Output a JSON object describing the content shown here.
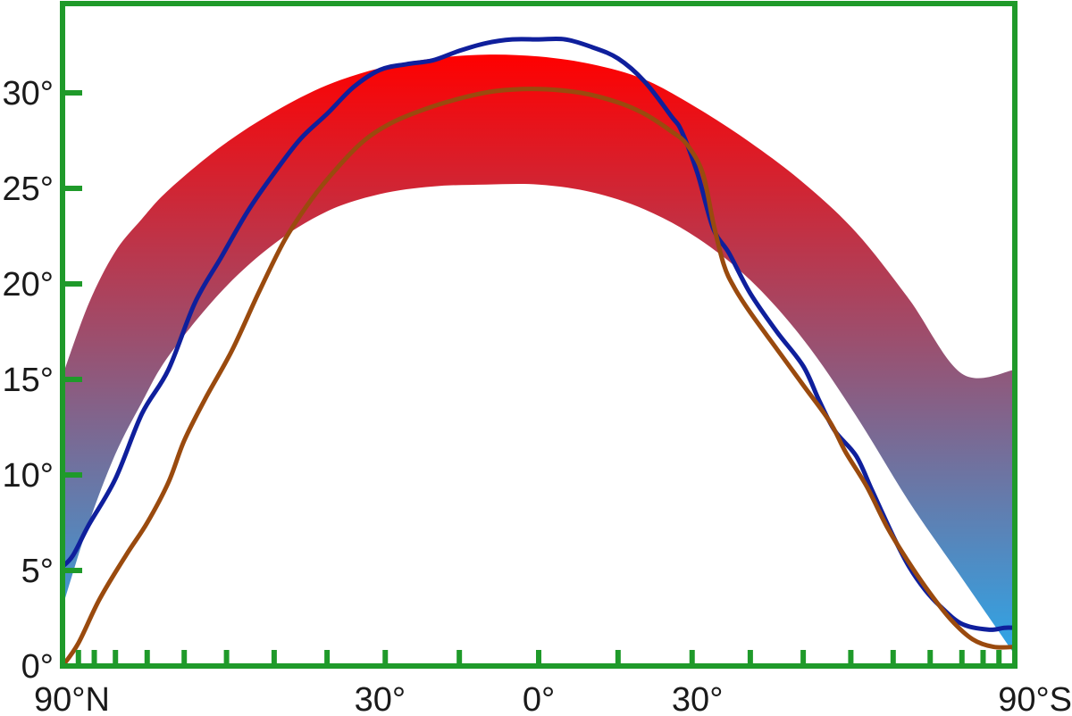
{
  "chart_data": {
    "type": "line",
    "title": "",
    "xlabel": "",
    "ylabel": "",
    "x_domain": [
      -90,
      90
    ],
    "ylim": [
      0,
      33
    ],
    "y_ticks": [
      {
        "value": 0,
        "label": "0°"
      },
      {
        "value": 5,
        "label": "5°"
      },
      {
        "value": 10,
        "label": "10°"
      },
      {
        "value": 15,
        "label": "15°"
      },
      {
        "value": 20,
        "label": "20°"
      },
      {
        "value": 25,
        "label": "25°"
      },
      {
        "value": 30,
        "label": "30°"
      }
    ],
    "x_tick_labels": [
      {
        "value": -90,
        "label": "90°N",
        "anchor": "start"
      },
      {
        "value": -30,
        "label": "30°",
        "anchor": "middle"
      },
      {
        "value": 0,
        "label": "0°",
        "anchor": "middle"
      },
      {
        "value": 30,
        "label": "30°",
        "anchor": "middle"
      },
      {
        "value": 90,
        "label": "90°S",
        "anchor": "end"
      }
    ],
    "x_minor_ticks": [
      -87,
      -84,
      -80,
      -74,
      -67,
      -59,
      -50,
      -40,
      -29,
      -15,
      0,
      15,
      29,
      40,
      50,
      59,
      67,
      74,
      80,
      84,
      87
    ],
    "band": {
      "top_color": "#ff0000",
      "bottom_color": "#2ea6e8",
      "upper": [
        [
          -90,
          15.2
        ],
        [
          -85,
          19.0
        ],
        [
          -80,
          21.7
        ],
        [
          -75,
          23.4
        ],
        [
          -70,
          24.9
        ],
        [
          -60,
          27.2
        ],
        [
          -50,
          29.0
        ],
        [
          -40,
          30.4
        ],
        [
          -30,
          31.3
        ],
        [
          -20,
          31.8
        ],
        [
          -10,
          32.0
        ],
        [
          0,
          31.9
        ],
        [
          10,
          31.5
        ],
        [
          20,
          30.7
        ],
        [
          30,
          29.2
        ],
        [
          40,
          27.4
        ],
        [
          50,
          25.3
        ],
        [
          60,
          22.7
        ],
        [
          70,
          19.2
        ],
        [
          80,
          15.3
        ],
        [
          90,
          15.5
        ]
      ],
      "lower": [
        [
          -90,
          3.1
        ],
        [
          -85,
          7.5
        ],
        [
          -80,
          11.1
        ],
        [
          -75,
          13.8
        ],
        [
          -70,
          16.2
        ],
        [
          -60,
          19.6
        ],
        [
          -50,
          22.1
        ],
        [
          -40,
          23.8
        ],
        [
          -30,
          24.7
        ],
        [
          -20,
          25.1
        ],
        [
          -10,
          25.2
        ],
        [
          0,
          25.2
        ],
        [
          10,
          24.8
        ],
        [
          20,
          23.9
        ],
        [
          30,
          22.4
        ],
        [
          40,
          20.2
        ],
        [
          50,
          17.1
        ],
        [
          60,
          13.1
        ],
        [
          70,
          8.6
        ],
        [
          80,
          4.6
        ],
        [
          90,
          0.6
        ]
      ]
    },
    "series": [
      {
        "color": "#0f1f9c",
        "points": [
          [
            -90,
            5.2
          ],
          [
            -88,
            5.8
          ],
          [
            -85,
            7.4
          ],
          [
            -80,
            9.8
          ],
          [
            -75,
            13.2
          ],
          [
            -70,
            15.5
          ],
          [
            -65,
            19.0
          ],
          [
            -60,
            21.4
          ],
          [
            -55,
            23.8
          ],
          [
            -50,
            25.8
          ],
          [
            -45,
            27.6
          ],
          [
            -40,
            28.9
          ],
          [
            -35,
            30.3
          ],
          [
            -30,
            31.2
          ],
          [
            -25,
            31.5
          ],
          [
            -20,
            31.7
          ],
          [
            -15,
            32.2
          ],
          [
            -10,
            32.6
          ],
          [
            -5,
            32.8
          ],
          [
            0,
            32.8
          ],
          [
            5,
            32.8
          ],
          [
            10,
            32.4
          ],
          [
            15,
            31.8
          ],
          [
            20,
            30.6
          ],
          [
            25,
            28.8
          ],
          [
            27,
            28.0
          ],
          [
            30,
            25.8
          ],
          [
            33,
            22.9
          ],
          [
            36,
            21.6
          ],
          [
            40,
            19.5
          ],
          [
            45,
            17.5
          ],
          [
            50,
            15.7
          ],
          [
            53,
            13.9
          ],
          [
            56,
            12.3
          ],
          [
            60,
            11.0
          ],
          [
            63,
            9.2
          ],
          [
            67,
            6.8
          ],
          [
            70,
            5.2
          ],
          [
            73,
            4.0
          ],
          [
            76,
            3.1
          ],
          [
            80,
            2.2
          ],
          [
            85,
            1.9
          ],
          [
            88,
            2.0
          ],
          [
            90,
            2.0
          ]
        ]
      },
      {
        "color": "#9a4a0e",
        "points": [
          [
            -90,
            0.0
          ],
          [
            -87,
            1.2
          ],
          [
            -83,
            3.5
          ],
          [
            -78,
            5.8
          ],
          [
            -74,
            7.5
          ],
          [
            -70,
            9.6
          ],
          [
            -67,
            11.8
          ],
          [
            -63,
            14.0
          ],
          [
            -58,
            16.5
          ],
          [
            -53,
            19.5
          ],
          [
            -48,
            22.3
          ],
          [
            -43,
            24.4
          ],
          [
            -38,
            26.1
          ],
          [
            -33,
            27.5
          ],
          [
            -28,
            28.4
          ],
          [
            -22,
            29.1
          ],
          [
            -15,
            29.7
          ],
          [
            -8,
            30.1
          ],
          [
            0,
            30.2
          ],
          [
            8,
            30.0
          ],
          [
            15,
            29.5
          ],
          [
            20,
            28.9
          ],
          [
            25,
            28.0
          ],
          [
            28,
            27.3
          ],
          [
            31,
            25.8
          ],
          [
            33,
            23.2
          ],
          [
            35,
            21.0
          ],
          [
            37,
            19.8
          ],
          [
            40,
            18.5
          ],
          [
            45,
            16.6
          ],
          [
            50,
            14.7
          ],
          [
            55,
            12.8
          ],
          [
            58,
            11.2
          ],
          [
            62,
            9.4
          ],
          [
            66,
            7.2
          ],
          [
            70,
            5.4
          ],
          [
            74,
            3.8
          ],
          [
            78,
            2.4
          ],
          [
            82,
            1.4
          ],
          [
            86,
            1.0
          ],
          [
            90,
            1.0
          ]
        ]
      }
    ]
  }
}
